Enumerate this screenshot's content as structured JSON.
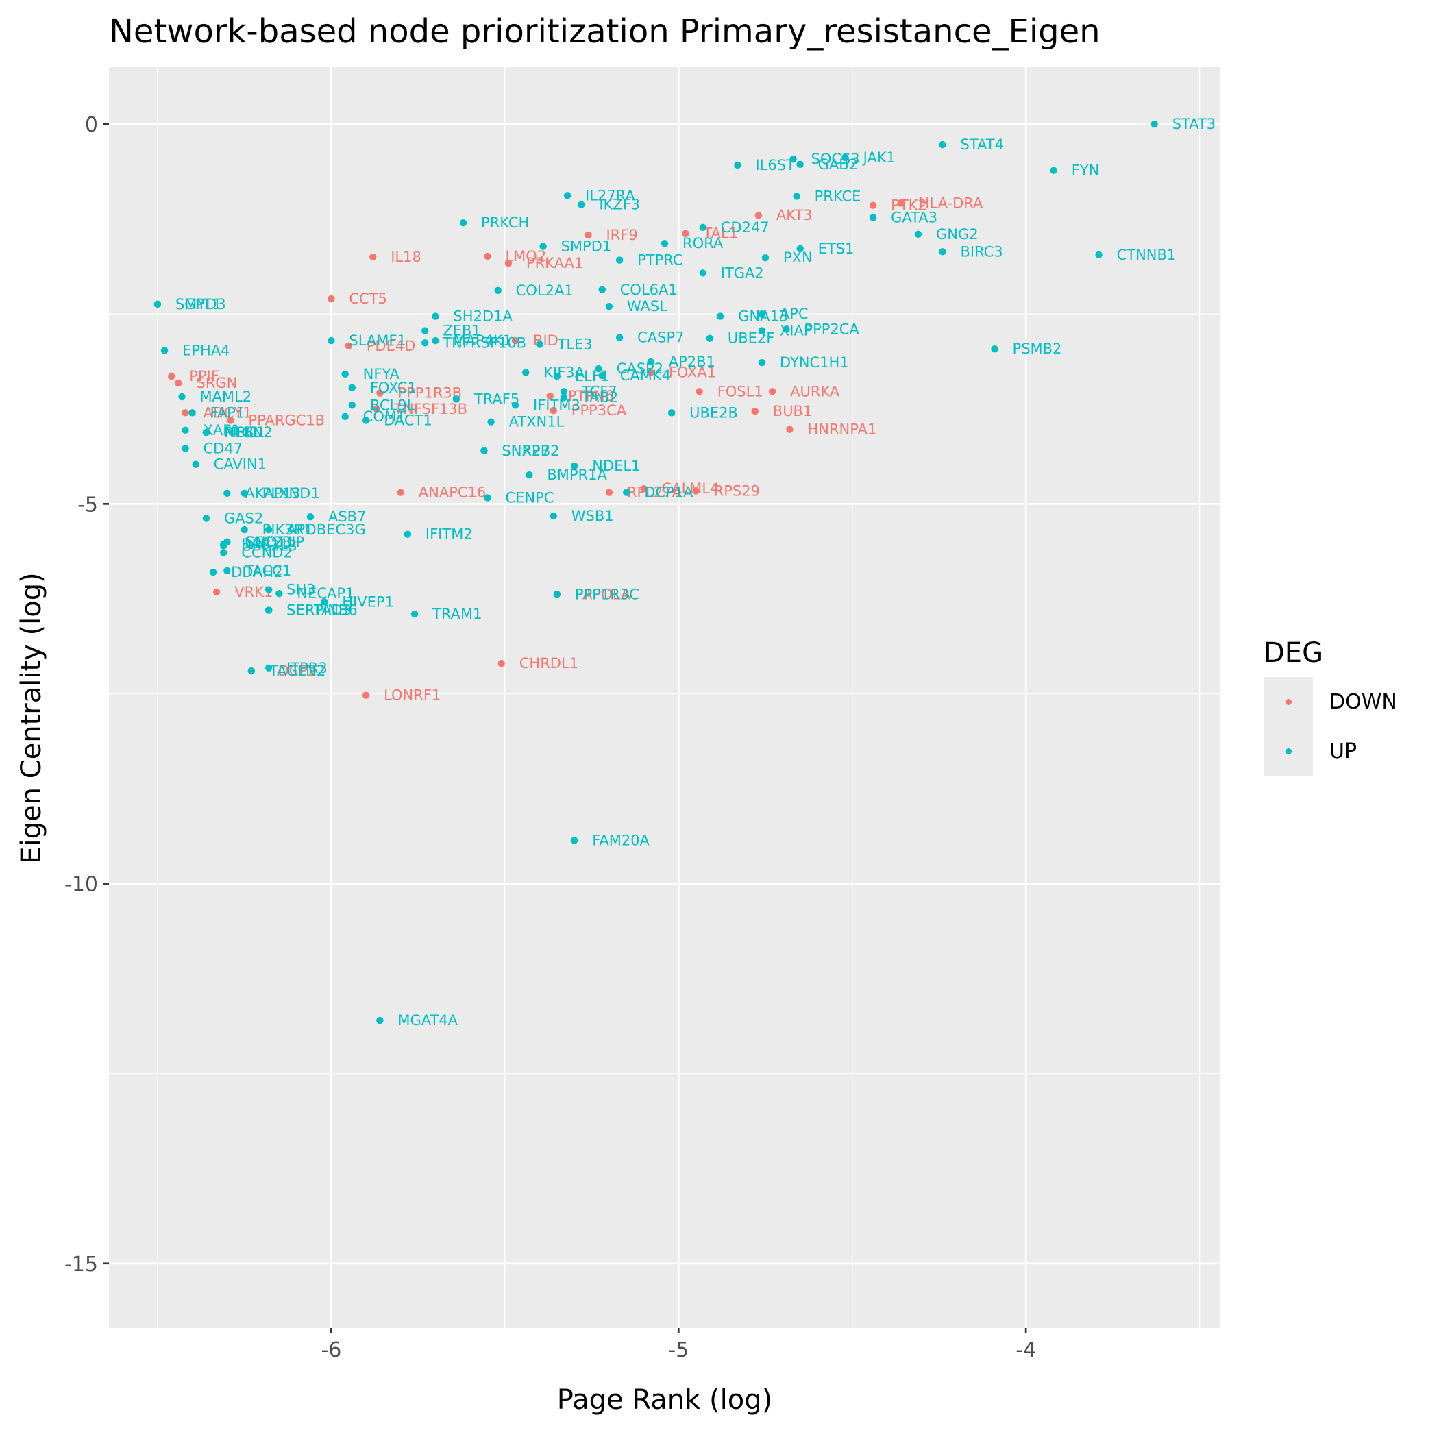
{
  "colors": {
    "DOWN": "#F8766D",
    "UP": "#00BFC4",
    "panel": "#EBEBEB",
    "grid": "#FFFFFF"
  },
  "chart_data": {
    "type": "scatter",
    "title": "Network-based node prioritization Primary_resistance_Eigen",
    "xlabel": "Page Rank (log)",
    "ylabel": "Eigen Centrality (log)",
    "xlim": [
      -6.64,
      -3.44
    ],
    "ylim": [
      -15.85,
      0.75
    ],
    "x_ticks": [
      -6,
      -5,
      -4
    ],
    "x_tick_labels": [
      "-6",
      "-5",
      "-4"
    ],
    "y_ticks": [
      0,
      -5,
      -10,
      -15
    ],
    "y_tick_labels": [
      "0",
      "-5",
      "-10",
      "-15"
    ],
    "grid": true,
    "legend": {
      "title": "DEG",
      "position": "right",
      "entries": [
        "DOWN",
        "UP"
      ]
    },
    "series": [
      {
        "name": "DOWN",
        "points": [
          {
            "label": "PTK2",
            "x": -4.44,
            "y": -1.07
          },
          {
            "label": "HLA-DRA",
            "x": -4.36,
            "y": -1.04
          },
          {
            "label": "AKT3",
            "x": -4.77,
            "y": -1.2
          },
          {
            "label": "TAL1",
            "x": -4.98,
            "y": -1.44
          },
          {
            "label": "IRF9",
            "x": -5.26,
            "y": -1.46
          },
          {
            "label": "IL18",
            "x": -5.88,
            "y": -1.75
          },
          {
            "label": "LMO2",
            "x": -5.55,
            "y": -1.74
          },
          {
            "label": "PRKAA1",
            "x": -5.49,
            "y": -1.83
          },
          {
            "label": "CCT5",
            "x": -6.0,
            "y": -2.3
          },
          {
            "label": "PDE4D",
            "x": -5.95,
            "y": -2.92
          },
          {
            "label": "BID",
            "x": -5.47,
            "y": -2.85
          },
          {
            "label": "FOXA1",
            "x": -5.08,
            "y": -3.27
          },
          {
            "label": "FOSL1",
            "x": -4.94,
            "y": -3.52
          },
          {
            "label": "AURKA",
            "x": -4.73,
            "y": -3.52
          },
          {
            "label": "BUB1",
            "x": -4.78,
            "y": -3.78
          },
          {
            "label": "HNRNPA1",
            "x": -4.68,
            "y": -4.02
          },
          {
            "label": "PPP1R3B",
            "x": -5.86,
            "y": -3.54
          },
          {
            "label": "PTPN6",
            "x": -5.37,
            "y": -3.58
          },
          {
            "label": "PPP3CA",
            "x": -5.36,
            "y": -3.77
          },
          {
            "label": "TNFSF13B",
            "x": -5.87,
            "y": -3.75
          },
          {
            "label": "PPIF",
            "x": -6.46,
            "y": -3.32
          },
          {
            "label": "SRGN",
            "x": -6.44,
            "y": -3.41
          },
          {
            "label": "ADCY1",
            "x": -6.42,
            "y": -3.8
          },
          {
            "label": "PPARGC1B",
            "x": -6.29,
            "y": -3.9
          },
          {
            "label": "ANAPC16",
            "x": -5.8,
            "y": -4.85
          },
          {
            "label": "RPL27A",
            "x": -5.2,
            "y": -4.85
          },
          {
            "label": "CALML4",
            "x": -5.1,
            "y": -4.8
          },
          {
            "label": "RPS29",
            "x": -4.95,
            "y": -4.83
          },
          {
            "label": "VRK1",
            "x": -6.33,
            "y": -6.16
          },
          {
            "label": "PAPOLA",
            "x": -5.35,
            "y": -6.19
          },
          {
            "label": "CHRDL1",
            "x": -5.51,
            "y": -7.1
          },
          {
            "label": "TDCP2",
            "x": -6.23,
            "y": -7.2
          },
          {
            "label": "LONRF1",
            "x": -5.9,
            "y": -7.52
          }
        ]
      },
      {
        "name": "UP",
        "points": [
          {
            "label": "STAT3",
            "x": -3.63,
            "y": 0.0
          },
          {
            "label": "STAT4",
            "x": -4.24,
            "y": -0.27
          },
          {
            "label": "FYN",
            "x": -3.92,
            "y": -0.61
          },
          {
            "label": "SOCS3",
            "x": -4.67,
            "y": -0.46
          },
          {
            "label": "JAK1",
            "x": -4.52,
            "y": -0.44
          },
          {
            "label": "GAB2",
            "x": -4.65,
            "y": -0.53
          },
          {
            "label": "IL6ST",
            "x": -4.83,
            "y": -0.54
          },
          {
            "label": "IL27RA",
            "x": -5.32,
            "y": -0.94
          },
          {
            "label": "IKZF3",
            "x": -5.28,
            "y": -1.06
          },
          {
            "label": "PRKCE",
            "x": -4.66,
            "y": -0.95
          },
          {
            "label": "GATA3",
            "x": -4.44,
            "y": -1.23
          },
          {
            "label": "GNG2",
            "x": -4.31,
            "y": -1.45
          },
          {
            "label": "BIRC3",
            "x": -4.24,
            "y": -1.68
          },
          {
            "label": "CTNNB1",
            "x": -3.79,
            "y": -1.72
          },
          {
            "label": "PRKCH",
            "x": -5.62,
            "y": -1.3
          },
          {
            "label": "CD247",
            "x": -4.93,
            "y": -1.36
          },
          {
            "label": "RORA",
            "x": -5.04,
            "y": -1.57
          },
          {
            "label": "ETS1",
            "x": -4.65,
            "y": -1.64
          },
          {
            "label": "PXN",
            "x": -4.75,
            "y": -1.76
          },
          {
            "label": "SMPD1",
            "x": -5.39,
            "y": -1.61
          },
          {
            "label": "PTPRC",
            "x": -5.17,
            "y": -1.79
          },
          {
            "label": "ITGA2",
            "x": -4.93,
            "y": -1.96
          },
          {
            "label": "COL2A1",
            "x": -5.52,
            "y": -2.19
          },
          {
            "label": "COL6A1",
            "x": -5.22,
            "y": -2.18
          },
          {
            "label": "WASL",
            "x": -5.2,
            "y": -2.4
          },
          {
            "label": "GNA13",
            "x": -4.88,
            "y": -2.53
          },
          {
            "label": "APC",
            "x": -4.76,
            "y": -2.5
          },
          {
            "label": "XIAP",
            "x": -4.76,
            "y": -2.72
          },
          {
            "label": "PPP2CA",
            "x": -4.69,
            "y": -2.7
          },
          {
            "label": "UBE2F",
            "x": -4.91,
            "y": -2.82
          },
          {
            "label": "CASP7",
            "x": -5.17,
            "y": -2.81
          },
          {
            "label": "PSMB2",
            "x": -4.09,
            "y": -2.96
          },
          {
            "label": "DYNC1H1",
            "x": -4.76,
            "y": -3.14
          },
          {
            "label": "AP2B1",
            "x": -5.08,
            "y": -3.13
          },
          {
            "label": "CASP2",
            "x": -5.23,
            "y": -3.22
          },
          {
            "label": "CAMK4",
            "x": -5.22,
            "y": -3.31
          },
          {
            "label": "KIF3A",
            "x": -5.44,
            "y": -3.27
          },
          {
            "label": "ELF1",
            "x": -5.35,
            "y": -3.32
          },
          {
            "label": "TCF7",
            "x": -5.33,
            "y": -3.52
          },
          {
            "label": "IFITM3",
            "x": -5.47,
            "y": -3.7
          },
          {
            "label": "TAB2",
            "x": -5.33,
            "y": -3.6
          },
          {
            "label": "TRAF5",
            "x": -5.64,
            "y": -3.62
          },
          {
            "label": "ATXN1L",
            "x": -5.54,
            "y": -3.92
          },
          {
            "label": "UBE2B",
            "x": -5.02,
            "y": -3.8
          },
          {
            "label": "SH2D1A",
            "x": -5.7,
            "y": -2.53
          },
          {
            "label": "ZEB1",
            "x": -5.73,
            "y": -2.72
          },
          {
            "label": "MAP4K1",
            "x": -5.7,
            "y": -2.85
          },
          {
            "label": "TNFRSF10B",
            "x": -5.73,
            "y": -2.88
          },
          {
            "label": "TLE3",
            "x": -5.4,
            "y": -2.9
          },
          {
            "label": "SLAMF1",
            "x": -6.0,
            "y": -2.85
          },
          {
            "label": "NFYA",
            "x": -5.96,
            "y": -3.29
          },
          {
            "label": "FOXC1",
            "x": -5.94,
            "y": -3.47
          },
          {
            "label": "BCL9L",
            "x": -5.94,
            "y": -3.7
          },
          {
            "label": "COMT",
            "x": -5.96,
            "y": -3.85
          },
          {
            "label": "DACT1",
            "x": -5.9,
            "y": -3.9
          },
          {
            "label": "SNX27",
            "x": -5.56,
            "y": -4.3
          },
          {
            "label": "SNRPB2",
            "x": -5.56,
            "y": -4.3
          },
          {
            "label": "NDEL1",
            "x": -5.3,
            "y": -4.5
          },
          {
            "label": "BMPR1A",
            "x": -5.43,
            "y": -4.62
          },
          {
            "label": "CENPC",
            "x": -5.55,
            "y": -4.92
          },
          {
            "label": "DCP1A",
            "x": -5.15,
            "y": -4.85
          },
          {
            "label": "WSB1",
            "x": -5.36,
            "y": -5.16
          },
          {
            "label": "IFITM2",
            "x": -5.78,
            "y": -5.4
          },
          {
            "label": "FAM20A",
            "x": -5.3,
            "y": -9.43
          },
          {
            "label": "MGAT4A",
            "x": -5.86,
            "y": -11.8
          },
          {
            "label": "TRAM1",
            "x": -5.76,
            "y": -6.45
          },
          {
            "label": "HIVEP1",
            "x": -6.02,
            "y": -6.29
          },
          {
            "label": "PPP1R3C",
            "x": -5.35,
            "y": -6.19
          },
          {
            "label": "SH3",
            "x": -6.18,
            "y": -6.13
          },
          {
            "label": "NECAP1",
            "x": -6.15,
            "y": -6.18
          },
          {
            "label": "SERPINB6",
            "x": -6.18,
            "y": -6.4
          },
          {
            "label": "SERTAD3",
            "x": -6.18,
            "y": -6.4
          },
          {
            "label": "ITPR3",
            "x": -6.18,
            "y": -7.16
          },
          {
            "label": "TAGLN2",
            "x": -6.23,
            "y": -7.2
          },
          {
            "label": "TACC1",
            "x": -6.3,
            "y": -5.88
          },
          {
            "label": "DDAH2",
            "x": -6.34,
            "y": -5.9
          },
          {
            "label": "RAB11",
            "x": -6.31,
            "y": -5.53
          },
          {
            "label": "CCND2",
            "x": -6.31,
            "y": -5.64
          },
          {
            "label": "UBE2L3",
            "x": -6.31,
            "y": -5.55
          },
          {
            "label": "CNOT1",
            "x": -6.3,
            "y": -5.5
          },
          {
            "label": "SEC23IP",
            "x": -6.3,
            "y": -5.5
          },
          {
            "label": "PIK3R1",
            "x": -6.25,
            "y": -5.34
          },
          {
            "label": "APOBEC3G",
            "x": -6.18,
            "y": -5.34
          },
          {
            "label": "ASB7",
            "x": -6.06,
            "y": -5.17
          },
          {
            "label": "GAS2",
            "x": -6.36,
            "y": -5.19
          },
          {
            "label": "AKAP13",
            "x": -6.3,
            "y": -4.86
          },
          {
            "label": "PLXND1",
            "x": -6.25,
            "y": -4.86
          },
          {
            "label": "CAVIN1",
            "x": -6.39,
            "y": -4.48
          },
          {
            "label": "CD47",
            "x": -6.42,
            "y": -4.27
          },
          {
            "label": "XAF1",
            "x": -6.42,
            "y": -4.03
          },
          {
            "label": "NEBL",
            "x": -6.36,
            "y": -4.06
          },
          {
            "label": "MRC1",
            "x": -6.36,
            "y": -4.06
          },
          {
            "label": "PTGN2",
            "x": -6.36,
            "y": -4.06
          },
          {
            "label": "MAML2",
            "x": -6.43,
            "y": -3.59
          },
          {
            "label": "EPHA4",
            "x": -6.48,
            "y": -2.98
          },
          {
            "label": "SGPL1",
            "x": -6.5,
            "y": -2.37
          },
          {
            "label": "SMYD3",
            "x": -6.5,
            "y": -2.37
          },
          {
            "label": "FAP1",
            "x": -6.4,
            "y": -3.8
          }
        ]
      }
    ]
  }
}
